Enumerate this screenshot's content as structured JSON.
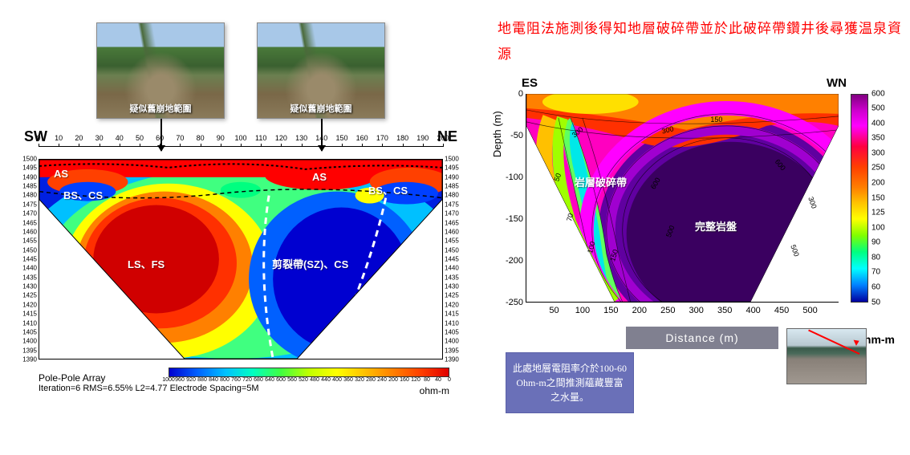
{
  "leftChart": {
    "type": "resistivity-pseudosection",
    "direction_left": "SW",
    "direction_right": "NE",
    "x_ticks": [
      0,
      10,
      20,
      30,
      40,
      50,
      60,
      70,
      80,
      90,
      100,
      110,
      120,
      130,
      140,
      150,
      160,
      170,
      180,
      190,
      200
    ],
    "y_ticks": [
      1500,
      1495,
      1490,
      1485,
      1480,
      1475,
      1470,
      1465,
      1460,
      1455,
      1450,
      1445,
      1440,
      1435,
      1430,
      1425,
      1420,
      1415,
      1410,
      1405,
      1400,
      1395,
      1390
    ],
    "footer_line1": "Pole-Pole Array",
    "footer_line2": "Iteration=6 RMS=6.55% L2=4.77 Electrode Spacing=5M",
    "colorbar_ticks": [
      1000,
      960,
      920,
      880,
      840,
      800,
      760,
      720,
      680,
      640,
      600,
      560,
      520,
      480,
      440,
      400,
      360,
      320,
      280,
      240,
      200,
      160,
      120,
      80,
      40,
      0
    ],
    "colorbar_unit": "ohm-m",
    "annotations": {
      "as1": "AS",
      "as2": "AS",
      "bscs1": "BS、CS",
      "bscs2": "BS、CS",
      "lsfs": "LS、FS",
      "shear": "剪裂帶(SZ)、CS"
    },
    "photos": {
      "caption1": "疑似舊崩地範圍",
      "caption2": "疑似舊崩地範圍"
    },
    "region_colors": {
      "surface_hot": "#ff0000",
      "peak_hot": "#d00000",
      "warm": "#ff8000",
      "yellow": "#ffff00",
      "green": "#40ff40",
      "cyan": "#00e0e0",
      "cold_blue": "#0020e0",
      "deep_blue": "#0000b0"
    }
  },
  "rightChart": {
    "type": "resistivity-contour",
    "headline": "地電阻法施測後得知地層破碎帶並於此破碎帶鑽井後尋獲温泉資源",
    "direction_left": "ES",
    "direction_right": "WN",
    "y_label": "Depth (m)",
    "y_ticks": [
      0,
      -50,
      -100,
      -150,
      -200,
      -250
    ],
    "x_ticks": [
      50,
      100,
      150,
      200,
      250,
      300,
      350,
      400,
      450,
      500
    ],
    "distance_label": "Distance  (m)",
    "colorbar_ticks": [
      600,
      500,
      400,
      350,
      300,
      250,
      200,
      150,
      125,
      100,
      90,
      80,
      70,
      60,
      50
    ],
    "colorbar_unit": "Ohm-m",
    "annotations": {
      "fracture": "岩層破碎帶",
      "intact": "完整岩盤"
    },
    "callout_text": "此處地層電阻率介於100-60 Ohm-m之間推測蘊藏豐富之水量。",
    "contour_labels": [
      "50",
      "70",
      "100",
      "150",
      "300",
      "300",
      "150",
      "500",
      "600",
      "600",
      "500",
      "300"
    ],
    "region_colors": {
      "plume_core": "#6000a0",
      "magenta": "#ff00ff",
      "red": "#ff2000",
      "orange": "#ff8000",
      "yellow": "#ffe000",
      "green": "#60ff60",
      "cyan": "#00e8e8",
      "deep_purple": "#3a0060"
    }
  }
}
